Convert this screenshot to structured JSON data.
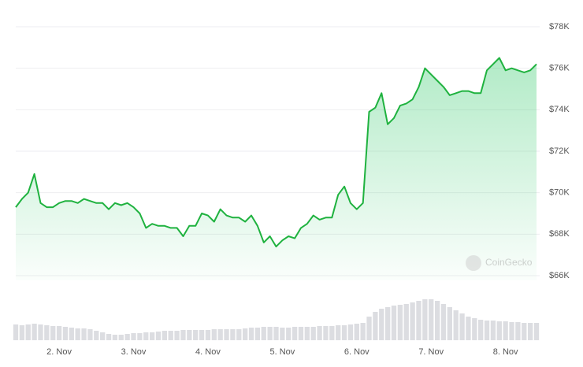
{
  "chart_data": {
    "type": "line",
    "watermark": "CoinGecko",
    "color": "#1fb23f",
    "volume_color": "#dcdde1",
    "categories": [
      null,
      null,
      null,
      null,
      null,
      null,
      null,
      "2. Nov",
      null,
      null,
      null,
      null,
      null,
      null,
      null,
      null,
      null,
      null,
      null,
      "3. Nov",
      null,
      null,
      null,
      null,
      null,
      null,
      null,
      null,
      null,
      null,
      null,
      "4. Nov",
      null,
      null,
      null,
      null,
      null,
      null,
      null,
      null,
      null,
      null,
      null,
      "5. Nov",
      null,
      null,
      null,
      null,
      null,
      null,
      null,
      null,
      null,
      null,
      null,
      "6. Nov",
      null,
      null,
      null,
      null,
      null,
      null,
      null,
      null,
      null,
      null,
      null,
      "7. Nov",
      null,
      null,
      null,
      null,
      null,
      null,
      null,
      null,
      null,
      null,
      null,
      "8. Nov",
      null,
      null,
      null,
      null,
      null
    ],
    "values": [
      69300,
      69700,
      70000,
      70900,
      69500,
      69300,
      69300,
      69500,
      69600,
      69600,
      69500,
      69700,
      69600,
      69500,
      69500,
      69200,
      69500,
      69400,
      69500,
      69300,
      69000,
      68300,
      68500,
      68400,
      68400,
      68300,
      68300,
      67900,
      68400,
      68400,
      69000,
      68900,
      68600,
      69200,
      68900,
      68800,
      68800,
      68600,
      68900,
      68400,
      67600,
      67900,
      67400,
      67700,
      67900,
      67800,
      68300,
      68500,
      68900,
      68700,
      68800,
      68800,
      69900,
      70300,
      69500,
      69200,
      69500,
      73900,
      74100,
      74800,
      73300,
      73600,
      74200,
      74300,
      74500,
      75100,
      76000,
      75700,
      75400,
      75100,
      74700,
      74800,
      74900,
      74900,
      74800,
      74800,
      75900,
      76200,
      76500,
      75900,
      76000,
      75900,
      75800,
      75900,
      76200
    ],
    "volume_values": [
      20,
      19,
      20,
      21,
      20,
      19,
      18,
      18,
      17,
      16,
      15,
      15,
      14,
      12,
      10,
      8,
      7,
      7,
      8,
      9,
      9,
      10,
      10,
      11,
      12,
      12,
      12,
      13,
      13,
      13,
      13,
      13,
      14,
      14,
      14,
      14,
      14,
      15,
      16,
      16,
      17,
      17,
      17,
      16,
      16,
      17,
      17,
      17,
      17,
      18,
      18,
      18,
      19,
      19,
      20,
      21,
      22,
      30,
      36,
      40,
      42,
      44,
      45,
      46,
      48,
      50,
      52,
      52,
      50,
      46,
      42,
      38,
      34,
      30,
      28,
      26,
      25,
      25,
      24,
      24,
      23,
      23,
      22,
      22,
      22
    ],
    "volume_lim": [
      0,
      60
    ],
    "ylim": [
      66000,
      78000
    ],
    "yticks": [
      {
        "value": 66000,
        "label": "$66K"
      },
      {
        "value": 68000,
        "label": "$68K"
      },
      {
        "value": 70000,
        "label": "$70K"
      },
      {
        "value": 72000,
        "label": "$72K"
      },
      {
        "value": 74000,
        "label": "$74K"
      },
      {
        "value": 76000,
        "label": "$76K"
      },
      {
        "value": 78000,
        "label": "$78K"
      }
    ],
    "grid": true
  }
}
